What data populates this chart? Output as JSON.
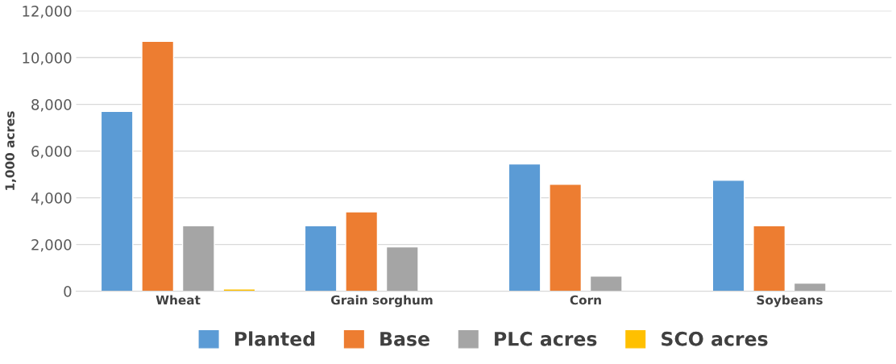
{
  "chart_data": {
    "type": "bar",
    "ylabel": "1,000 acres",
    "categories": [
      "Wheat",
      "Grain sorghum",
      "Corn",
      "Soybeans"
    ],
    "series": [
      {
        "name": "Planted",
        "color": "#5b9bd5",
        "values": [
          7700,
          2800,
          5450,
          4750
        ]
      },
      {
        "name": "Base",
        "color": "#ed7d31",
        "values": [
          10700,
          3400,
          4580,
          2800
        ]
      },
      {
        "name": "PLC acres",
        "color": "#a5a5a5",
        "values": [
          2800,
          1900,
          650,
          350
        ]
      },
      {
        "name": "SCO acres",
        "color": "#ffc000",
        "values": [
          100,
          null,
          null,
          null
        ]
      }
    ],
    "ylim": [
      0,
      12000
    ],
    "yticks": [
      {
        "value": 0,
        "label": "0"
      },
      {
        "value": 2000,
        "label": "2,000"
      },
      {
        "value": 4000,
        "label": "4,000"
      },
      {
        "value": 6000,
        "label": "6,000"
      },
      {
        "value": 8000,
        "label": "8,000"
      },
      {
        "value": 10000,
        "label": "10,000"
      },
      {
        "value": 12000,
        "label": "12,000"
      }
    ],
    "grid": "y",
    "legend": "bottom"
  }
}
